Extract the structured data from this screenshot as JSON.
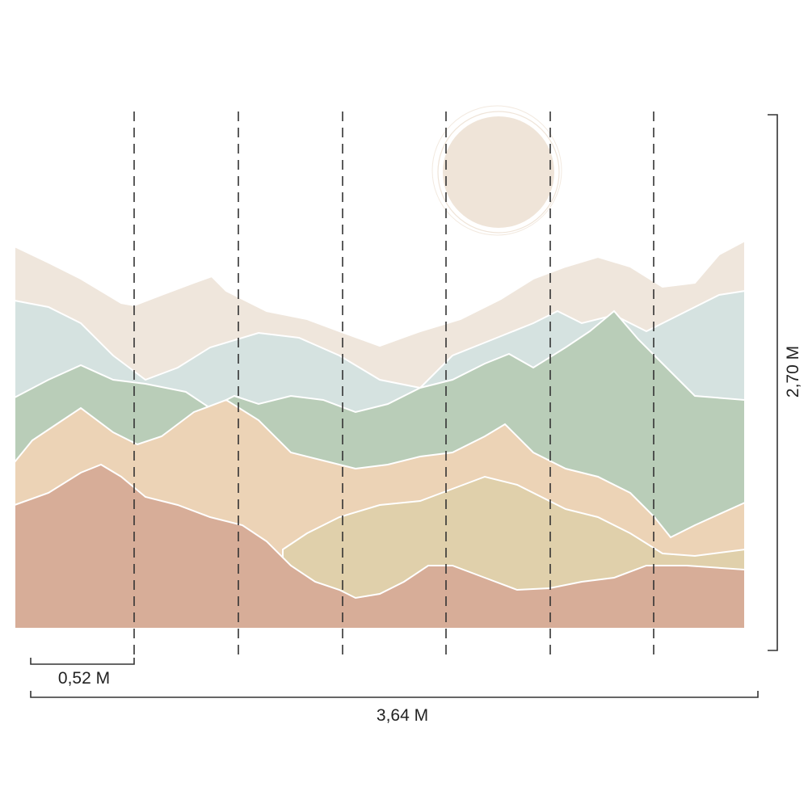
{
  "dimensions": {
    "panel_width": "0,52 M",
    "total_width": "3,64 M",
    "height": "2,70 M"
  }
}
